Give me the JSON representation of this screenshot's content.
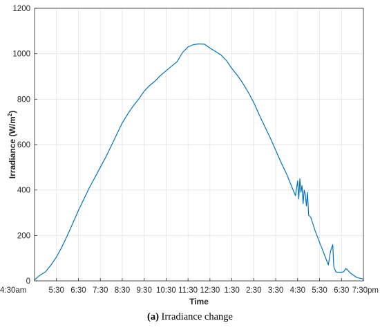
{
  "chart_data": {
    "type": "line",
    "title": "",
    "xlabel": "Time",
    "ylabel": "Irradiance (W/m²)",
    "ylabel_parts": {
      "main": "Irradiance (W/m",
      "sup": "2",
      "close": ")"
    },
    "x_start_label": "4:30am",
    "x_end_label": "7:30pm",
    "x_tick_labels": [
      "4:30am",
      "5:30",
      "6:30",
      "7:30",
      "8:30",
      "9:30",
      "10:30",
      "11:30",
      "12:30",
      "1:30",
      "2:30",
      "3:30",
      "4:30",
      "5:30",
      "6:30",
      "7:30pm"
    ],
    "xlim_hours": [
      4.5,
      19.5
    ],
    "ylim": [
      0,
      1200
    ],
    "y_ticks": [
      0,
      200,
      400,
      600,
      800,
      1000,
      1200
    ],
    "grid": true,
    "series": [
      {
        "color": "#0072BD",
        "x_hours": [
          4.5,
          4.75,
          5.0,
          5.25,
          5.5,
          5.75,
          6.0,
          6.25,
          6.5,
          6.75,
          7.0,
          7.25,
          7.5,
          7.75,
          8.0,
          8.25,
          8.5,
          8.75,
          9.0,
          9.25,
          9.5,
          9.75,
          10.0,
          10.25,
          10.5,
          10.75,
          11.0,
          11.25,
          11.5,
          11.75,
          12.0,
          12.25,
          12.5,
          12.75,
          13.0,
          13.25,
          13.5,
          13.75,
          14.0,
          14.25,
          14.5,
          14.75,
          15.0,
          15.25,
          15.5,
          15.75,
          16.0,
          16.25,
          16.4,
          16.5,
          16.55,
          16.6,
          16.65,
          16.7,
          16.75,
          16.8,
          16.85,
          16.9,
          16.95,
          17.0,
          17.1,
          17.2,
          17.3,
          17.5,
          17.7,
          17.9,
          18.0,
          18.1,
          18.15,
          18.2,
          18.25,
          18.3,
          18.35,
          18.5,
          18.6,
          18.7,
          18.8,
          18.9,
          19.0,
          19.2,
          19.5
        ],
        "y": [
          5,
          25,
          40,
          70,
          105,
          150,
          200,
          255,
          310,
          360,
          410,
          455,
          500,
          545,
          595,
          645,
          695,
          735,
          770,
          800,
          835,
          860,
          880,
          905,
          925,
          945,
          965,
          1005,
          1030,
          1040,
          1043,
          1042,
          1025,
          1010,
          995,
          970,
          935,
          905,
          870,
          830,
          785,
          730,
          680,
          630,
          575,
          520,
          470,
          410,
          375,
          440,
          360,
          450,
          390,
          420,
          340,
          400,
          380,
          330,
          390,
          290,
          280,
          250,
          220,
          170,
          120,
          70,
          130,
          160,
          60,
          50,
          40,
          38,
          38,
          38,
          40,
          55,
          45,
          35,
          28,
          15,
          8
        ]
      }
    ]
  },
  "caption": {
    "label": "(a)",
    "text": " Irradiance change"
  }
}
